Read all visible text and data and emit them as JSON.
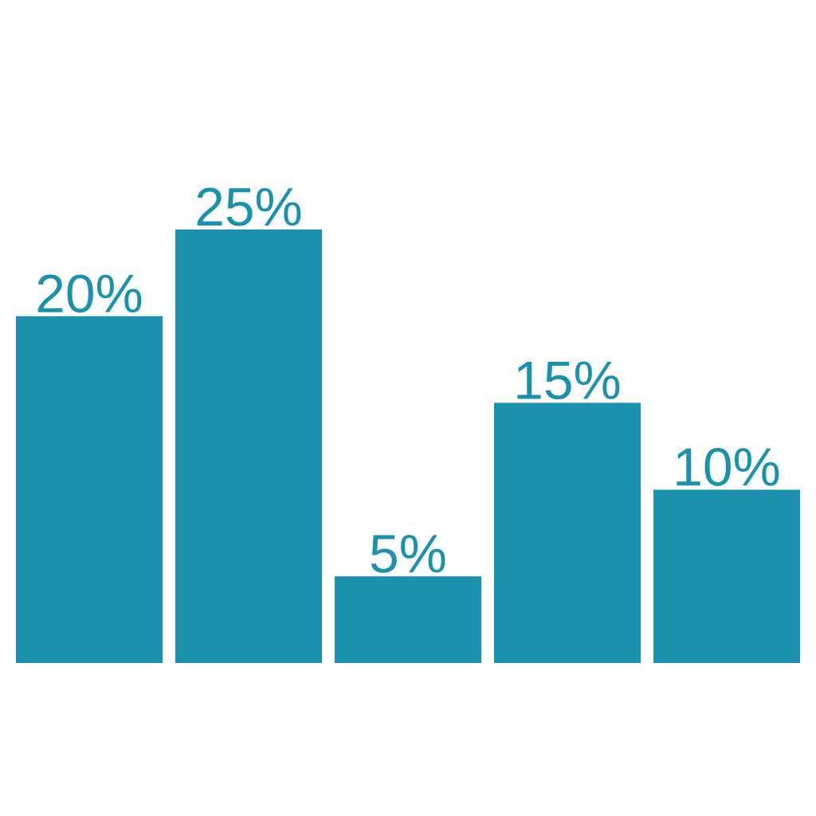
{
  "chart_data": {
    "type": "bar",
    "categories": [
      null,
      null,
      null,
      null,
      null
    ],
    "values": [
      20,
      25,
      5,
      15,
      10
    ],
    "value_labels": [
      "20%",
      "25%",
      "5%",
      "15%",
      "10%"
    ],
    "color": "#1a92ad",
    "ylim": [
      0,
      25
    ]
  }
}
